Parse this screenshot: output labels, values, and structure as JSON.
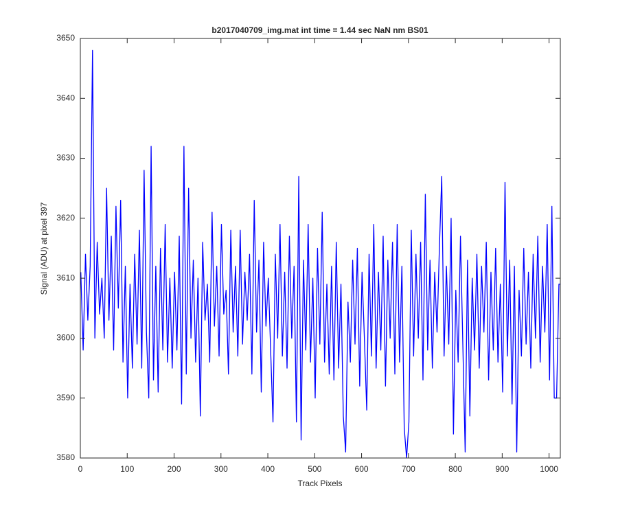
{
  "chart_data": {
    "type": "line",
    "title": "b2017040709_img.mat int time = 1.44 sec  NaN nm BS01",
    "xlabel": "Track Pixels",
    "ylabel": "Signal (ADU) at pixel 397",
    "xlim": [
      0,
      1024
    ],
    "ylim": [
      3580,
      3650
    ],
    "xticks": [
      0,
      100,
      200,
      300,
      400,
      500,
      600,
      700,
      800,
      900,
      1000
    ],
    "yticks": [
      3580,
      3590,
      3600,
      3610,
      3620,
      3630,
      3640,
      3650
    ],
    "x": [
      1,
      6,
      11,
      16,
      21,
      26,
      31,
      36,
      41,
      46,
      51,
      56,
      61,
      66,
      71,
      76,
      81,
      86,
      91,
      96,
      101,
      106,
      111,
      116,
      121,
      126,
      131,
      136,
      141,
      146,
      151,
      156,
      161,
      166,
      171,
      176,
      181,
      186,
      191,
      196,
      201,
      206,
      211,
      216,
      221,
      226,
      231,
      236,
      241,
      246,
      251,
      256,
      261,
      266,
      271,
      276,
      281,
      286,
      291,
      296,
      301,
      306,
      311,
      316,
      321,
      326,
      331,
      336,
      341,
      346,
      351,
      356,
      361,
      366,
      371,
      376,
      381,
      386,
      391,
      396,
      401,
      406,
      411,
      416,
      421,
      426,
      431,
      436,
      441,
      446,
      451,
      456,
      461,
      466,
      471,
      476,
      481,
      486,
      491,
      496,
      501,
      506,
      511,
      516,
      521,
      526,
      531,
      536,
      541,
      546,
      551,
      556,
      561,
      566,
      571,
      576,
      581,
      586,
      591,
      596,
      601,
      606,
      611,
      616,
      621,
      626,
      631,
      636,
      641,
      646,
      651,
      656,
      661,
      666,
      671,
      676,
      681,
      686,
      691,
      696,
      701,
      706,
      711,
      716,
      721,
      726,
      731,
      736,
      741,
      746,
      751,
      756,
      761,
      766,
      771,
      776,
      781,
      786,
      791,
      796,
      801,
      806,
      811,
      816,
      821,
      826,
      831,
      836,
      841,
      846,
      851,
      856,
      861,
      866,
      871,
      876,
      881,
      886,
      891,
      896,
      901,
      906,
      911,
      916,
      921,
      926,
      931,
      936,
      941,
      946,
      951,
      956,
      961,
      966,
      971,
      976,
      981,
      986,
      991,
      996,
      1001,
      1006,
      1011,
      1016,
      1021,
      1024
    ],
    "series": [
      {
        "color": "#0000ff",
        "values": [
          3611,
          3598,
          3614,
          3603,
          3612,
          3648,
          3600,
          3616,
          3604,
          3610,
          3600,
          3625,
          3603,
          3617,
          3598,
          3622,
          3605,
          3623,
          3596,
          3612,
          3590,
          3609,
          3595,
          3614,
          3599,
          3618,
          3595,
          3628,
          3601,
          3590,
          3632,
          3593,
          3612,
          3591,
          3615,
          3598,
          3619,
          3596,
          3610,
          3595,
          3611,
          3598,
          3617,
          3589,
          3632,
          3594,
          3625,
          3600,
          3613,
          3596,
          3610,
          3587,
          3616,
          3603,
          3609,
          3596,
          3621,
          3602,
          3612,
          3597,
          3619,
          3604,
          3608,
          3594,
          3618,
          3601,
          3612,
          3597,
          3618,
          3599,
          3611,
          3603,
          3614,
          3594,
          3623,
          3601,
          3613,
          3591,
          3616,
          3602,
          3610,
          3598,
          3586,
          3614,
          3600,
          3619,
          3597,
          3611,
          3595,
          3617,
          3600,
          3612,
          3586,
          3627,
          3583,
          3613,
          3598,
          3619,
          3596,
          3610,
          3590,
          3615,
          3599,
          3621,
          3596,
          3609,
          3594,
          3612,
          3593,
          3616,
          3595,
          3609,
          3587,
          3581,
          3606,
          3596,
          3613,
          3599,
          3615,
          3592,
          3611,
          3600,
          3588,
          3614,
          3597,
          3619,
          3595,
          3611,
          3598,
          3617,
          3592,
          3613,
          3600,
          3616,
          3594,
          3619,
          3596,
          3612,
          3585,
          3580,
          3586,
          3618,
          3597,
          3614,
          3600,
          3616,
          3593,
          3624,
          3598,
          3613,
          3595,
          3611,
          3601,
          3615,
          3627,
          3597,
          3612,
          3599,
          3620,
          3584,
          3608,
          3596,
          3617,
          3599,
          3581,
          3613,
          3587,
          3610,
          3598,
          3614,
          3595,
          3612,
          3601,
          3616,
          3593,
          3611,
          3598,
          3615,
          3596,
          3609,
          3591,
          3626,
          3597,
          3613,
          3589,
          3612,
          3581,
          3608,
          3597,
          3615,
          3599,
          3611,
          3595,
          3614,
          3600,
          3617,
          3596,
          3612,
          3601,
          3619,
          3593,
          3622,
          3590,
          3590,
          3609,
          3609
        ]
      }
    ]
  }
}
